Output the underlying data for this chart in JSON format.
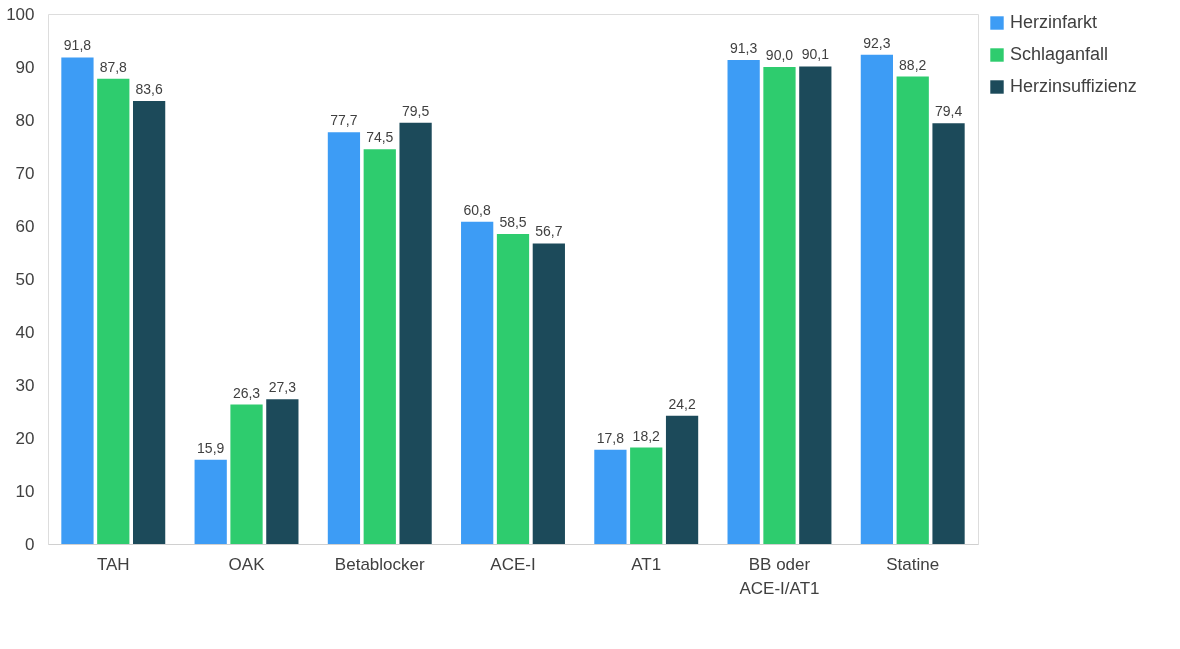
{
  "chart_data": {
    "type": "bar",
    "categories": [
      "TAH",
      "OAK",
      "Betablocker",
      "ACE-I",
      "AT1",
      "BB oder ACE-I/AT1",
      "Statine"
    ],
    "series": [
      {
        "name": "Herzinfarkt",
        "color": "#3d9cf5",
        "values": [
          91.8,
          15.9,
          77.7,
          60.8,
          17.8,
          91.3,
          92.3
        ],
        "value_labels": [
          "91,8",
          "15,9",
          "77,7",
          "60,8",
          "17,8",
          "91,3",
          "92,3"
        ]
      },
      {
        "name": "Schlaganfall",
        "color": "#2ecc6e",
        "values": [
          87.8,
          26.3,
          74.5,
          58.5,
          18.2,
          90.0,
          88.2
        ],
        "value_labels": [
          "87,8",
          "26,3",
          "74,5",
          "58,5",
          "18,2",
          "90,0",
          "88,2"
        ]
      },
      {
        "name": "Herzinsuffizienz",
        "color": "#1c4a5a",
        "values": [
          83.6,
          27.3,
          79.5,
          56.7,
          24.2,
          90.1,
          79.4
        ],
        "value_labels": [
          "83,6",
          "27,3",
          "79,5",
          "56,7",
          "24,2",
          "90,1",
          "79,4"
        ]
      }
    ],
    "ylim": [
      0,
      100
    ],
    "yticks": [
      0,
      10,
      20,
      30,
      40,
      50,
      60,
      70,
      80,
      90,
      100
    ],
    "grid": false,
    "legend": "right"
  }
}
